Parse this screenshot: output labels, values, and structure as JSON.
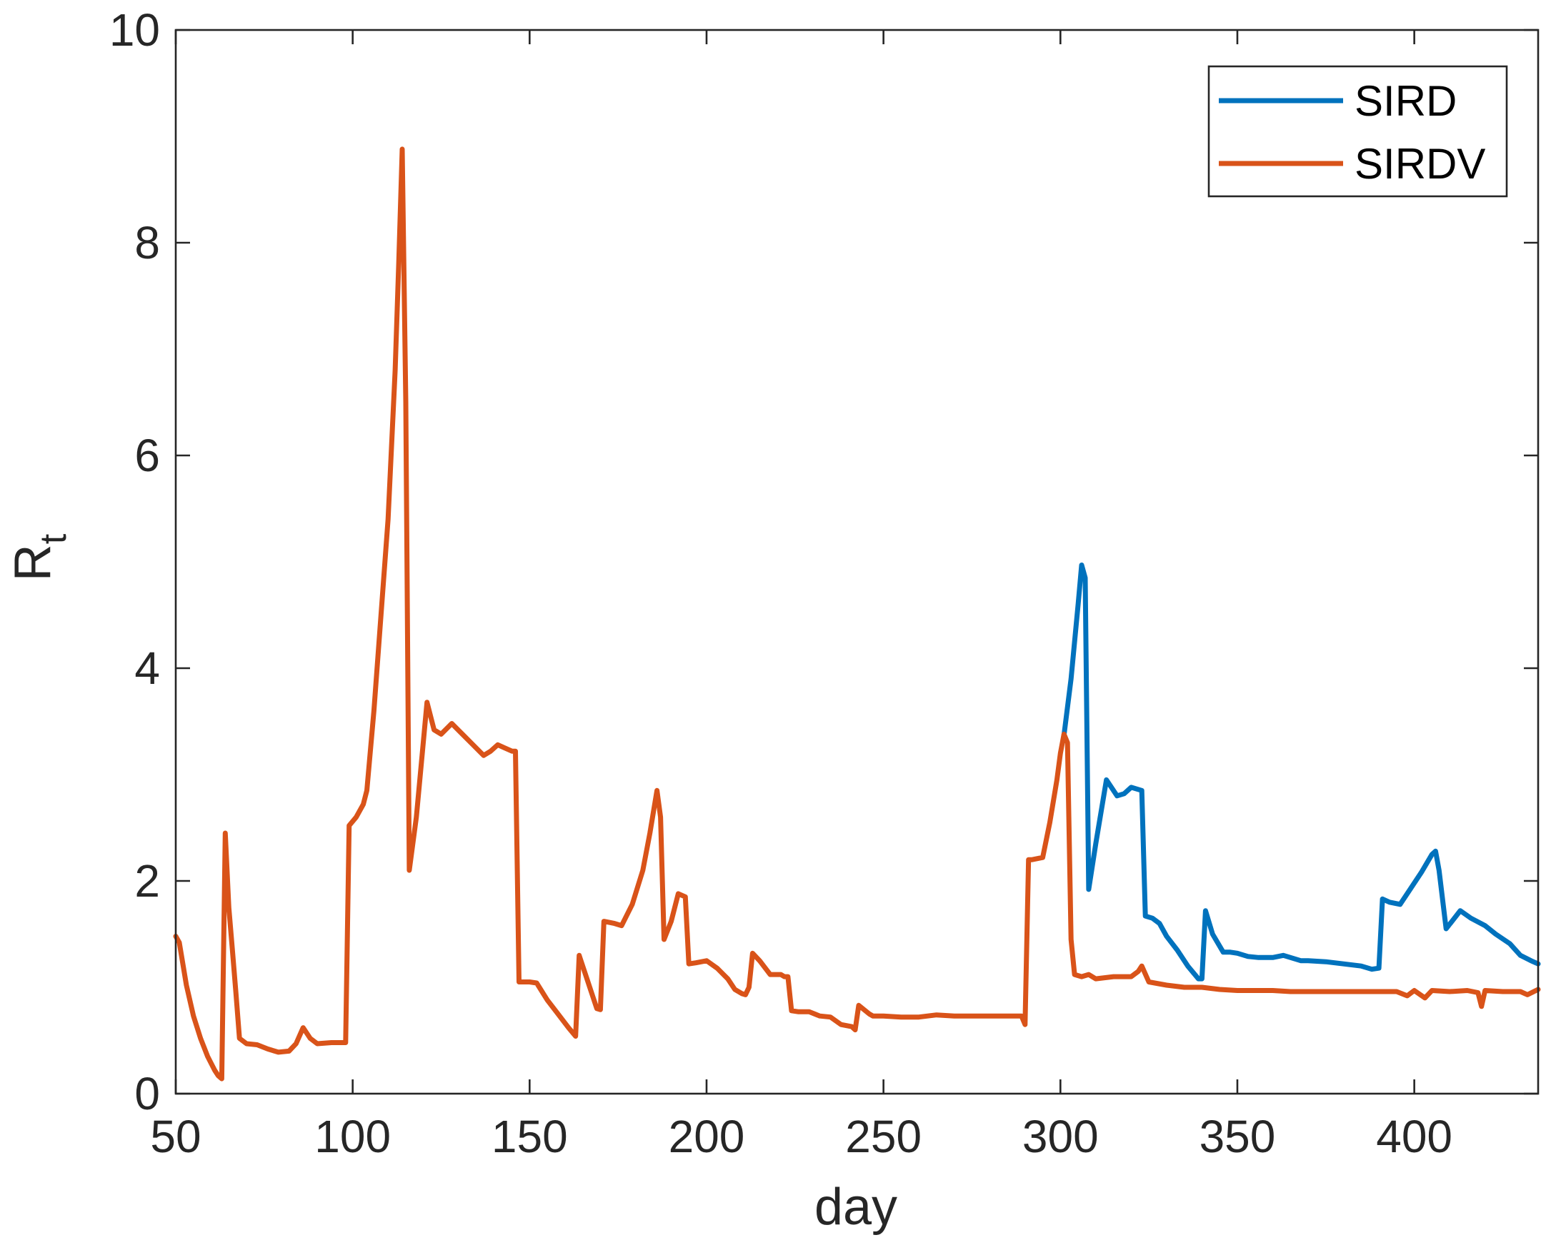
{
  "chart_data": {
    "type": "line",
    "xlabel": "day",
    "ylabel_main": "R",
    "ylabel_sub": "t",
    "xlim": [
      50,
      435
    ],
    "ylim": [
      0,
      10
    ],
    "x_ticks": [
      50,
      100,
      150,
      200,
      250,
      300,
      350,
      400
    ],
    "y_ticks": [
      0,
      2,
      4,
      6,
      8,
      10
    ],
    "grid": false,
    "legend_position": "top-right",
    "series": [
      {
        "name": "SIRD",
        "color": "#0072BD",
        "x": [
          301,
          303,
          305,
          306,
          307,
          308,
          310,
          313,
          316,
          318,
          320,
          323,
          324,
          326,
          328,
          330,
          333,
          336,
          339,
          340,
          341,
          343,
          346,
          348,
          350,
          353,
          356,
          360,
          363,
          365,
          368,
          370,
          375,
          380,
          385,
          388,
          390,
          391,
          393,
          396,
          398,
          402,
          405,
          406,
          407,
          409,
          413,
          416,
          420,
          423,
          427,
          430,
          433,
          435
        ],
        "y": [
          3.37,
          3.9,
          4.6,
          4.97,
          4.85,
          1.92,
          2.35,
          2.95,
          2.8,
          2.82,
          2.88,
          2.85,
          1.67,
          1.65,
          1.6,
          1.48,
          1.35,
          1.2,
          1.08,
          1.08,
          1.72,
          1.5,
          1.33,
          1.33,
          1.32,
          1.29,
          1.28,
          1.28,
          1.3,
          1.28,
          1.25,
          1.25,
          1.24,
          1.22,
          1.2,
          1.17,
          1.18,
          1.83,
          1.8,
          1.78,
          1.88,
          2.08,
          2.25,
          2.28,
          2.1,
          1.55,
          1.72,
          1.65,
          1.58,
          1.5,
          1.41,
          1.3,
          1.25,
          1.22
        ]
      },
      {
        "name": "SIRDV",
        "color": "#D95319",
        "x": [
          50,
          51,
          53,
          55,
          57,
          59,
          61,
          62,
          63,
          64,
          65,
          66,
          67,
          68,
          70,
          73,
          76,
          79,
          82,
          84,
          86,
          88,
          90,
          94,
          98,
          99,
          101,
          103,
          104,
          106,
          108,
          110,
          112,
          113,
          114,
          115,
          116,
          118,
          121,
          123,
          125,
          128,
          131,
          134,
          137,
          139,
          141,
          143,
          145,
          146,
          147,
          150,
          152,
          155,
          158,
          161,
          163,
          164,
          167,
          169,
          170,
          171,
          174,
          176,
          179,
          182,
          184,
          186,
          187,
          188,
          190,
          192,
          194,
          195,
          197,
          200,
          203,
          206,
          208,
          210,
          211,
          212,
          213,
          215,
          218,
          221,
          222,
          223,
          224,
          226,
          229,
          232,
          235,
          238,
          241,
          242,
          243,
          246,
          247,
          250,
          255,
          260,
          265,
          270,
          275,
          280,
          285,
          289,
          290,
          291,
          292,
          295,
          297,
          299,
          300,
          301,
          302,
          303,
          304,
          306,
          308,
          310,
          315,
          317,
          320,
          322,
          323,
          325,
          330,
          335,
          340,
          345,
          350,
          355,
          360,
          365,
          370,
          375,
          380,
          385,
          390,
          395,
          398,
          400,
          403,
          405,
          410,
          415,
          418,
          419,
          420,
          425,
          430,
          432,
          435
        ],
        "y": [
          1.48,
          1.42,
          1.02,
          0.73,
          0.52,
          0.35,
          0.22,
          0.17,
          0.14,
          2.45,
          1.75,
          1.35,
          0.95,
          0.52,
          0.47,
          0.46,
          0.42,
          0.39,
          0.4,
          0.47,
          0.62,
          0.52,
          0.47,
          0.48,
          0.48,
          2.52,
          2.6,
          2.72,
          2.85,
          3.6,
          4.5,
          5.4,
          6.8,
          7.8,
          8.88,
          6.5,
          2.1,
          2.6,
          3.68,
          3.42,
          3.38,
          3.48,
          3.38,
          3.28,
          3.18,
          3.22,
          3.28,
          3.25,
          3.22,
          3.22,
          1.05,
          1.05,
          1.04,
          0.88,
          0.75,
          0.62,
          0.54,
          1.3,
          1.0,
          0.8,
          0.79,
          1.62,
          1.6,
          1.58,
          1.78,
          2.1,
          2.45,
          2.85,
          2.6,
          1.45,
          1.62,
          1.88,
          1.85,
          1.22,
          1.23,
          1.25,
          1.18,
          1.08,
          0.98,
          0.94,
          0.93,
          1.0,
          1.32,
          1.25,
          1.12,
          1.12,
          1.1,
          1.1,
          0.78,
          0.77,
          0.77,
          0.73,
          0.72,
          0.65,
          0.63,
          0.6,
          0.83,
          0.75,
          0.73,
          0.73,
          0.72,
          0.72,
          0.74,
          0.73,
          0.73,
          0.73,
          0.73,
          0.73,
          0.65,
          2.2,
          2.2,
          2.22,
          2.55,
          2.95,
          3.2,
          3.38,
          3.3,
          1.45,
          1.12,
          1.1,
          1.12,
          1.08,
          1.1,
          1.1,
          1.1,
          1.15,
          1.2,
          1.05,
          1.02,
          1.0,
          1.0,
          0.98,
          0.97,
          0.97,
          0.97,
          0.96,
          0.96,
          0.96,
          0.96,
          0.96,
          0.96,
          0.96,
          0.92,
          0.97,
          0.9,
          0.97,
          0.96,
          0.97,
          0.95,
          0.82,
          0.97,
          0.96,
          0.96,
          0.93,
          0.98
        ]
      }
    ]
  }
}
